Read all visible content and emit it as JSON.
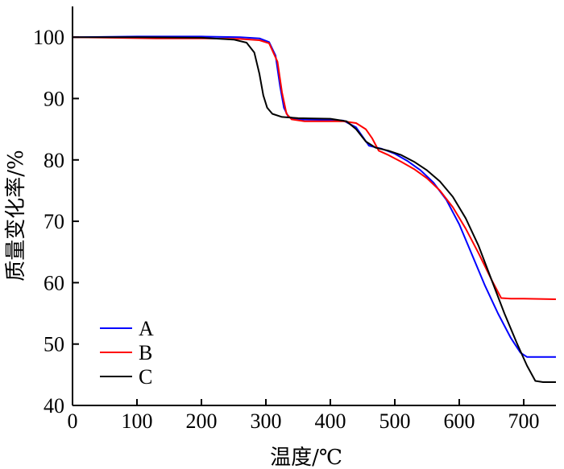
{
  "chart_data": {
    "type": "line",
    "title": "",
    "xlabel": "温度/℃",
    "ylabel": "质量变化率/%",
    "xlim": [
      0,
      750
    ],
    "ylim": [
      40,
      105
    ],
    "xticks": [
      0,
      100,
      200,
      300,
      400,
      500,
      600,
      700
    ],
    "yticks": [
      40,
      50,
      60,
      70,
      80,
      90,
      100
    ],
    "grid": false,
    "legend_position": "bottom-left",
    "series": [
      {
        "name": "A",
        "color": "#0000ff",
        "points": [
          [
            0,
            100
          ],
          [
            100,
            100.1
          ],
          [
            200,
            100.1
          ],
          [
            260,
            100
          ],
          [
            290,
            99.8
          ],
          [
            305,
            99.2
          ],
          [
            315,
            97
          ],
          [
            322,
            92
          ],
          [
            328,
            88.5
          ],
          [
            335,
            87
          ],
          [
            350,
            86.6
          ],
          [
            400,
            86.5
          ],
          [
            420,
            86.4
          ],
          [
            440,
            85.3
          ],
          [
            460,
            82.3
          ],
          [
            480,
            81.8
          ],
          [
            500,
            81
          ],
          [
            520,
            79.8
          ],
          [
            540,
            78.3
          ],
          [
            560,
            76.3
          ],
          [
            580,
            73.5
          ],
          [
            600,
            69.5
          ],
          [
            620,
            64.5
          ],
          [
            640,
            59.5
          ],
          [
            660,
            55
          ],
          [
            680,
            51
          ],
          [
            695,
            48.6
          ],
          [
            705,
            47.9
          ],
          [
            750,
            47.9
          ]
        ]
      },
      {
        "name": "B",
        "color": "#ff0000",
        "points": [
          [
            0,
            100
          ],
          [
            130,
            99.8
          ],
          [
            200,
            99.8
          ],
          [
            260,
            99.7
          ],
          [
            290,
            99.5
          ],
          [
            305,
            99
          ],
          [
            318,
            96
          ],
          [
            325,
            91
          ],
          [
            332,
            87.5
          ],
          [
            340,
            86.6
          ],
          [
            360,
            86.3
          ],
          [
            400,
            86.3
          ],
          [
            420,
            86.3
          ],
          [
            440,
            86
          ],
          [
            455,
            85
          ],
          [
            465,
            83.5
          ],
          [
            475,
            81.5
          ],
          [
            490,
            80.8
          ],
          [
            510,
            79.7
          ],
          [
            530,
            78.5
          ],
          [
            550,
            77
          ],
          [
            570,
            75
          ],
          [
            590,
            72.3
          ],
          [
            610,
            68.8
          ],
          [
            630,
            64.8
          ],
          [
            650,
            60.5
          ],
          [
            665,
            57.5
          ],
          [
            680,
            57.4
          ],
          [
            700,
            57.4
          ],
          [
            750,
            57.3
          ]
        ]
      },
      {
        "name": "C",
        "color": "#000000",
        "points": [
          [
            0,
            100
          ],
          [
            100,
            100
          ],
          [
            200,
            99.9
          ],
          [
            250,
            99.6
          ],
          [
            270,
            99.1
          ],
          [
            282,
            97.5
          ],
          [
            290,
            94
          ],
          [
            296,
            90.5
          ],
          [
            302,
            88.5
          ],
          [
            310,
            87.5
          ],
          [
            325,
            87
          ],
          [
            350,
            86.8
          ],
          [
            400,
            86.7
          ],
          [
            425,
            86.3
          ],
          [
            440,
            85
          ],
          [
            455,
            83
          ],
          [
            470,
            82
          ],
          [
            490,
            81.5
          ],
          [
            510,
            80.8
          ],
          [
            530,
            79.7
          ],
          [
            550,
            78.3
          ],
          [
            570,
            76.5
          ],
          [
            590,
            74
          ],
          [
            610,
            70.5
          ],
          [
            630,
            66
          ],
          [
            650,
            60.5
          ],
          [
            670,
            55
          ],
          [
            690,
            50
          ],
          [
            705,
            46.5
          ],
          [
            718,
            44
          ],
          [
            730,
            43.8
          ],
          [
            750,
            43.8
          ]
        ]
      }
    ]
  }
}
